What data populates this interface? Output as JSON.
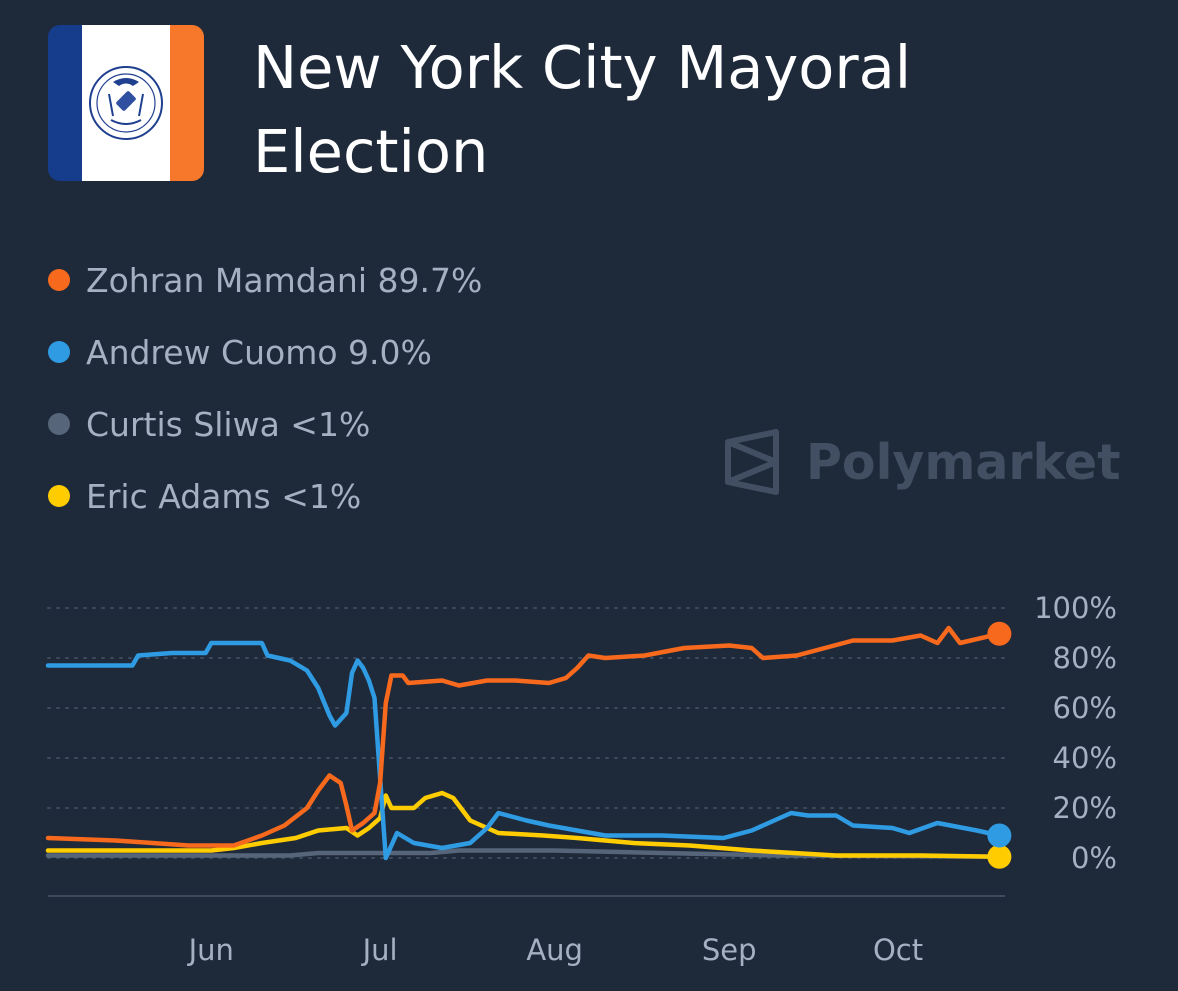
{
  "header": {
    "title": "New York City Mayoral Election",
    "logo_name": "nyc-flag"
  },
  "watermark": {
    "text": "Polymarket"
  },
  "colors": {
    "background": "#1e2a3a",
    "mamdani": "#f7691c",
    "cuomo": "#2f9be3",
    "sliwa": "#56657a",
    "adams": "#ffcc00",
    "grid": "#3b4a5e",
    "tick": "#a5b1c2"
  },
  "legend": [
    {
      "label": "Zohran Mamdani 89.7%",
      "color": "#f7691c"
    },
    {
      "label": "Andrew Cuomo 9.0%",
      "color": "#2f9be3"
    },
    {
      "label": "Curtis Sliwa <1%",
      "color": "#56657a"
    },
    {
      "label": "Eric Adams <1%",
      "color": "#ffcc00"
    }
  ],
  "chart_data": {
    "type": "line",
    "title": "New York City Mayoral Election",
    "xlabel": "",
    "ylabel": "",
    "ylim": [
      0,
      100
    ],
    "yticks": [
      "100%",
      "80%",
      "60%",
      "40%",
      "20%",
      "0%"
    ],
    "yaxis_position": "right",
    "xticks": [
      "Jun",
      "Jul",
      "Aug",
      "Sep",
      "Oct"
    ],
    "xlim": [
      "2025-05-03",
      "2025-10-20"
    ],
    "xtick_dates": [
      "2025-06-01",
      "2025-07-01",
      "2025-08-01",
      "2025-09-01",
      "2025-10-01"
    ],
    "grid": "horizontal-dotted",
    "series": [
      {
        "name": "Zohran Mamdani",
        "color": "#f7691c",
        "end_marker": true,
        "points": [
          [
            "2025-05-03",
            8
          ],
          [
            "2025-05-15",
            7
          ],
          [
            "2025-05-28",
            5
          ],
          [
            "2025-06-05",
            5
          ],
          [
            "2025-06-10",
            9
          ],
          [
            "2025-06-14",
            13
          ],
          [
            "2025-06-18",
            20
          ],
          [
            "2025-06-20",
            27
          ],
          [
            "2025-06-22",
            33
          ],
          [
            "2025-06-24",
            30
          ],
          [
            "2025-06-25",
            21
          ],
          [
            "2025-06-26",
            11
          ],
          [
            "2025-06-28",
            14
          ],
          [
            "2025-06-30",
            18
          ],
          [
            "2025-07-01",
            30
          ],
          [
            "2025-07-02",
            62
          ],
          [
            "2025-07-03",
            73
          ],
          [
            "2025-07-05",
            73
          ],
          [
            "2025-07-06",
            70
          ],
          [
            "2025-07-12",
            71
          ],
          [
            "2025-07-15",
            69
          ],
          [
            "2025-07-20",
            71
          ],
          [
            "2025-07-25",
            71
          ],
          [
            "2025-07-31",
            70
          ],
          [
            "2025-08-03",
            72
          ],
          [
            "2025-08-05",
            76
          ],
          [
            "2025-08-07",
            81
          ],
          [
            "2025-08-10",
            80
          ],
          [
            "2025-08-17",
            81
          ],
          [
            "2025-08-24",
            84
          ],
          [
            "2025-09-01",
            85
          ],
          [
            "2025-09-05",
            84
          ],
          [
            "2025-09-07",
            80
          ],
          [
            "2025-09-13",
            81
          ],
          [
            "2025-09-18",
            84
          ],
          [
            "2025-09-23",
            87
          ],
          [
            "2025-09-30",
            87
          ],
          [
            "2025-10-05",
            89
          ],
          [
            "2025-10-08",
            86
          ],
          [
            "2025-10-10",
            92
          ],
          [
            "2025-10-12",
            86
          ],
          [
            "2025-10-19",
            89.7
          ]
        ]
      },
      {
        "name": "Andrew Cuomo",
        "color": "#2f9be3",
        "end_marker": true,
        "points": [
          [
            "2025-05-03",
            77
          ],
          [
            "2025-05-18",
            77
          ],
          [
            "2025-05-19",
            81
          ],
          [
            "2025-05-25",
            82
          ],
          [
            "2025-05-31",
            82
          ],
          [
            "2025-06-01",
            86
          ],
          [
            "2025-06-10",
            86
          ],
          [
            "2025-06-11",
            81
          ],
          [
            "2025-06-15",
            79
          ],
          [
            "2025-06-18",
            75
          ],
          [
            "2025-06-20",
            68
          ],
          [
            "2025-06-22",
            57
          ],
          [
            "2025-06-23",
            53
          ],
          [
            "2025-06-25",
            58
          ],
          [
            "2025-06-26",
            74
          ],
          [
            "2025-06-27",
            79
          ],
          [
            "2025-06-28",
            76
          ],
          [
            "2025-06-29",
            71
          ],
          [
            "2025-06-30",
            64
          ],
          [
            "2025-07-01",
            32
          ],
          [
            "2025-07-02",
            0
          ],
          [
            "2025-07-03",
            5
          ],
          [
            "2025-07-04",
            10
          ],
          [
            "2025-07-07",
            6
          ],
          [
            "2025-07-12",
            4
          ],
          [
            "2025-07-17",
            6
          ],
          [
            "2025-07-20",
            12
          ],
          [
            "2025-07-22",
            18
          ],
          [
            "2025-07-27",
            15
          ],
          [
            "2025-07-31",
            13
          ],
          [
            "2025-08-05",
            11
          ],
          [
            "2025-08-10",
            9
          ],
          [
            "2025-08-20",
            9
          ],
          [
            "2025-08-31",
            8
          ],
          [
            "2025-09-05",
            11
          ],
          [
            "2025-09-09",
            15
          ],
          [
            "2025-09-12",
            18
          ],
          [
            "2025-09-15",
            17
          ],
          [
            "2025-09-20",
            17
          ],
          [
            "2025-09-23",
            13
          ],
          [
            "2025-09-30",
            12
          ],
          [
            "2025-10-03",
            10
          ],
          [
            "2025-10-08",
            14
          ],
          [
            "2025-10-15",
            11
          ],
          [
            "2025-10-19",
            9.0
          ]
        ]
      },
      {
        "name": "Curtis Sliwa",
        "color": "#56657a",
        "end_marker": false,
        "points": [
          [
            "2025-05-03",
            1
          ],
          [
            "2025-06-15",
            1
          ],
          [
            "2025-06-20",
            2
          ],
          [
            "2025-07-10",
            2
          ],
          [
            "2025-07-15",
            3
          ],
          [
            "2025-08-01",
            3
          ],
          [
            "2025-08-20",
            2
          ],
          [
            "2025-09-10",
            1
          ],
          [
            "2025-10-19",
            0.5
          ]
        ]
      },
      {
        "name": "Eric Adams",
        "color": "#ffcc00",
        "end_marker": true,
        "points": [
          [
            "2025-05-03",
            3
          ],
          [
            "2025-05-20",
            3
          ],
          [
            "2025-06-01",
            3
          ],
          [
            "2025-06-05",
            4
          ],
          [
            "2025-06-10",
            6
          ],
          [
            "2025-06-16",
            8
          ],
          [
            "2025-06-20",
            11
          ],
          [
            "2025-06-25",
            12
          ],
          [
            "2025-06-27",
            9
          ],
          [
            "2025-06-29",
            12
          ],
          [
            "2025-07-01",
            16
          ],
          [
            "2025-07-02",
            25
          ],
          [
            "2025-07-03",
            20
          ],
          [
            "2025-07-07",
            20
          ],
          [
            "2025-07-09",
            24
          ],
          [
            "2025-07-12",
            26
          ],
          [
            "2025-07-14",
            24
          ],
          [
            "2025-07-17",
            15
          ],
          [
            "2025-07-22",
            10
          ],
          [
            "2025-07-30",
            9
          ],
          [
            "2025-08-05",
            8
          ],
          [
            "2025-08-15",
            6
          ],
          [
            "2025-08-25",
            5
          ],
          [
            "2025-09-05",
            3
          ],
          [
            "2025-09-20",
            1
          ],
          [
            "2025-10-05",
            1
          ],
          [
            "2025-10-19",
            0.5
          ]
        ]
      }
    ]
  }
}
